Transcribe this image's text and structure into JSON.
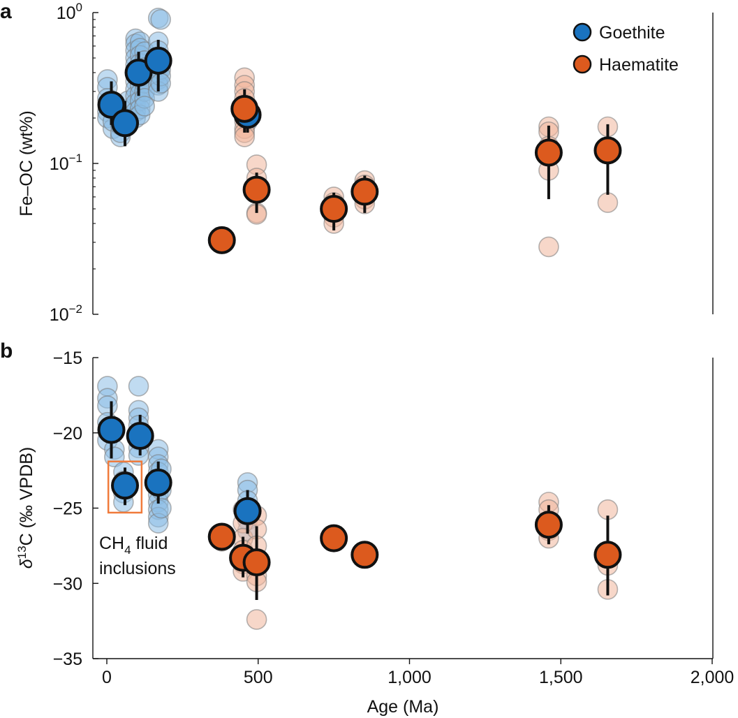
{
  "colors": {
    "goethite": "#1a73bf",
    "haematite": "#dc5a1e",
    "goethite_light": "#8dbde6",
    "haematite_light": "#f0b69c",
    "annotation_box": "#f07a3a"
  },
  "chart_data": [
    {
      "panel": "a",
      "type": "scatter",
      "ylabel": "Fe–OC (wt%)",
      "yscale": "log",
      "ylim": [
        0.01,
        1.0
      ],
      "xlim": [
        -30,
        2000
      ],
      "yticks": [
        {
          "value": 1.0,
          "base": "10",
          "exp": "0"
        },
        {
          "value": 0.1,
          "base": "10",
          "exp": "−1"
        },
        {
          "value": 0.01,
          "base": "10",
          "exp": "−2"
        }
      ],
      "legend": {
        "placement": "top-right",
        "items": [
          {
            "label": "Goethite",
            "series": "goethite"
          },
          {
            "label": "Haematite",
            "series": "haematite"
          }
        ]
      },
      "means": [
        {
          "series": "goethite",
          "x": 15,
          "y": 0.245,
          "lo": 0.18,
          "hi": 0.35
        },
        {
          "series": "goethite",
          "x": 60,
          "y": 0.185,
          "lo": 0.13,
          "hi": 0.26
        },
        {
          "series": "goethite",
          "x": 105,
          "y": 0.4,
          "lo": 0.28,
          "hi": 0.55
        },
        {
          "series": "goethite",
          "x": 170,
          "y": 0.48,
          "lo": 0.3,
          "hi": 0.66
        },
        {
          "series": "goethite",
          "x": 465,
          "y": 0.21,
          "lo": 0.16,
          "hi": 0.27
        },
        {
          "series": "haematite",
          "x": 380,
          "y": 0.031,
          "lo": null,
          "hi": null
        },
        {
          "series": "haematite",
          "x": 455,
          "y": 0.23,
          "lo": 0.16,
          "hi": 0.31
        },
        {
          "series": "haematite",
          "x": 495,
          "y": 0.067,
          "lo": 0.047,
          "hi": 0.087
        },
        {
          "series": "haematite",
          "x": 750,
          "y": 0.05,
          "lo": 0.036,
          "hi": 0.064
        },
        {
          "series": "haematite",
          "x": 852,
          "y": 0.065,
          "lo": 0.047,
          "hi": 0.083
        },
        {
          "series": "haematite",
          "x": 1460,
          "y": 0.118,
          "lo": 0.058,
          "hi": 0.178
        },
        {
          "series": "haematite",
          "x": 1655,
          "y": 0.122,
          "lo": 0.062,
          "hi": 0.182
        }
      ],
      "samples": [
        {
          "series": "goethite",
          "x": 2,
          "y": [
            0.36,
            0.32,
            0.27,
            0.22,
            0.2
          ]
        },
        {
          "series": "goethite",
          "x": 20,
          "y": [
            0.17,
            0.19
          ]
        },
        {
          "series": "goethite",
          "x": 45,
          "y": [
            0.15,
            0.16,
            0.18,
            0.21
          ]
        },
        {
          "series": "goethite",
          "x": 70,
          "y": [
            0.2,
            0.23,
            0.26
          ]
        },
        {
          "series": "goethite",
          "x": 95,
          "y": [
            0.67,
            0.62,
            0.56,
            0.5,
            0.45,
            0.4,
            0.35,
            0.31,
            0.28,
            0.25,
            0.22,
            0.2
          ]
        },
        {
          "series": "goethite",
          "x": 110,
          "y": [
            0.64,
            0.58,
            0.52,
            0.46,
            0.42,
            0.37,
            0.33,
            0.29,
            0.26,
            0.23,
            0.21
          ]
        },
        {
          "series": "goethite",
          "x": 125,
          "y": [
            0.55,
            0.48,
            0.43,
            0.38,
            0.34,
            0.3,
            0.27,
            0.24
          ]
        },
        {
          "series": "goethite",
          "x": 170,
          "y": [
            0.92,
            0.64,
            0.56,
            0.5,
            0.44,
            0.4,
            0.36,
            0.33,
            0.3
          ]
        },
        {
          "series": "goethite",
          "x": 178,
          "y": [
            0.9,
            0.42,
            0.38,
            0.34
          ]
        },
        {
          "series": "goethite",
          "x": 465,
          "y": [
            0.19,
            0.22,
            0.24
          ]
        },
        {
          "series": "haematite",
          "x": 455,
          "y": [
            0.37,
            0.33,
            0.3,
            0.27,
            0.24,
            0.21,
            0.19,
            0.17,
            0.16,
            0.15
          ]
        },
        {
          "series": "haematite",
          "x": 495,
          "y": [
            0.098,
            0.08,
            0.068,
            0.047,
            0.046
          ]
        },
        {
          "series": "haematite",
          "x": 750,
          "y": [
            0.06,
            0.055,
            0.044,
            0.04
          ]
        },
        {
          "series": "haematite",
          "x": 852,
          "y": [
            0.077,
            0.072,
            0.058,
            0.054
          ]
        },
        {
          "series": "haematite",
          "x": 1460,
          "y": [
            0.175,
            0.162,
            0.13,
            0.09,
            0.028
          ]
        },
        {
          "series": "haematite",
          "x": 1655,
          "y": [
            0.175,
            0.055
          ]
        }
      ]
    },
    {
      "panel": "b",
      "type": "scatter",
      "ylabel_symbol": "δ",
      "ylabel_sup": "13",
      "ylabel_rest": "C (‰ VPDB)",
      "xlabel": "Age (Ma)",
      "ylim": [
        -35,
        -15
      ],
      "xlim": [
        -30,
        2000
      ],
      "yticks": [
        -15,
        -20,
        -25,
        -30,
        -35
      ],
      "ytick_labels": [
        "−15",
        "−20",
        "−25",
        "−30",
        "−35"
      ],
      "xticks": [
        0,
        500,
        1000,
        1500,
        2000
      ],
      "xtick_labels": [
        "0",
        "500",
        "1,000",
        "1,500",
        "2,000"
      ],
      "annotation": {
        "line1_main": "CH",
        "line1_sub": "4",
        "line1_rest": " fluid",
        "line2": "inclusions",
        "box_x": [
          5,
          115
        ],
        "box_y": [
          -21.9,
          -25.3
        ]
      },
      "means": [
        {
          "series": "goethite",
          "x": 15,
          "y": -19.8,
          "lo": -21.7,
          "hi": -17.9
        },
        {
          "series": "goethite",
          "x": 60,
          "y": -23.5,
          "lo": -24.8,
          "hi": -22.3
        },
        {
          "series": "goethite",
          "x": 110,
          "y": -20.2,
          "lo": -21.5,
          "hi": -18.8
        },
        {
          "series": "goethite",
          "x": 170,
          "y": -23.3,
          "lo": -24.7,
          "hi": -21.9
        },
        {
          "series": "goethite",
          "x": 465,
          "y": -25.2,
          "lo": -26.7,
          "hi": -23.8
        },
        {
          "series": "haematite",
          "x": 380,
          "y": -26.9,
          "lo": null,
          "hi": null
        },
        {
          "series": "haematite",
          "x": 450,
          "y": -28.3,
          "lo": -29.6,
          "hi": -26.9
        },
        {
          "series": "haematite",
          "x": 495,
          "y": -28.6,
          "lo": -31.1,
          "hi": -26.2
        },
        {
          "series": "haematite",
          "x": 750,
          "y": -27.0,
          "lo": null,
          "hi": null
        },
        {
          "series": "haematite",
          "x": 852,
          "y": -28.1,
          "lo": null,
          "hi": null
        },
        {
          "series": "haematite",
          "x": 1460,
          "y": -26.1,
          "lo": -27.4,
          "hi": -24.8
        },
        {
          "series": "haematite",
          "x": 1655,
          "y": -28.1,
          "lo": -30.8,
          "hi": -25.5
        }
      ],
      "samples": [
        {
          "series": "goethite",
          "x": 2,
          "y": [
            -16.9,
            -17.7,
            -18.2,
            -19.3,
            -20.5
          ]
        },
        {
          "series": "goethite",
          "x": 25,
          "y": [
            -21.1,
            -21.6
          ]
        },
        {
          "series": "goethite",
          "x": 55,
          "y": [
            -22.6,
            -23.2,
            -24.0,
            -24.6
          ]
        },
        {
          "series": "goethite",
          "x": 105,
          "y": [
            -16.9,
            -18.5,
            -19.0,
            -19.5,
            -20.0,
            -20.5,
            -21.0,
            -21.5
          ]
        },
        {
          "series": "goethite",
          "x": 170,
          "y": [
            -21.1,
            -21.6,
            -22.1,
            -22.6,
            -23.1,
            -23.6,
            -24.1,
            -24.6,
            -25.1,
            -25.6,
            -26.0
          ]
        },
        {
          "series": "goethite",
          "x": 180,
          "y": [
            -22.4,
            -23.8,
            -25.0
          ]
        },
        {
          "series": "goethite",
          "x": 465,
          "y": [
            -23.3,
            -23.8,
            -24.5,
            -25.8,
            -26.5
          ]
        },
        {
          "series": "haematite",
          "x": 380,
          "y": [
            -26.7,
            -27.2
          ]
        },
        {
          "series": "haematite",
          "x": 450,
          "y": [
            -25.1,
            -26.0,
            -27.0,
            -27.8,
            -28.7,
            -29.2
          ]
        },
        {
          "series": "haematite",
          "x": 495,
          "y": [
            -25.5,
            -26.4,
            -27.5,
            -29.5,
            -29.9,
            -32.4
          ]
        },
        {
          "series": "haematite",
          "x": 1460,
          "y": [
            -24.6,
            -25.1,
            -26.5,
            -27.0
          ]
        },
        {
          "series": "haematite",
          "x": 1655,
          "y": [
            -25.1,
            -28.8,
            -30.4
          ]
        }
      ]
    }
  ]
}
